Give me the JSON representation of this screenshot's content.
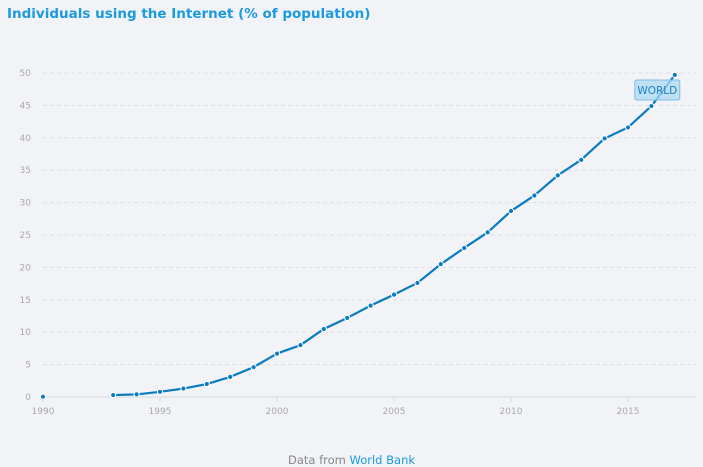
{
  "chart_data": {
    "type": "line",
    "title": "Individuals using the Internet (% of population)",
    "xlabel": "",
    "ylabel": "",
    "xlim": [
      1990,
      2017
    ],
    "ylim": [
      0,
      50
    ],
    "x_ticks": [
      "1990",
      "1995",
      "2000",
      "2005",
      "2010",
      "2015"
    ],
    "y_ticks": [
      "0",
      "5",
      "10",
      "15",
      "20",
      "25",
      "30",
      "35",
      "40",
      "45",
      "50"
    ],
    "grid": true,
    "series": [
      {
        "name": "WORLD",
        "color": "#0a7bc1",
        "x": [
          1990,
          1993,
          1994,
          1995,
          1996,
          1997,
          1998,
          1999,
          2000,
          2001,
          2002,
          2003,
          2004,
          2005,
          2006,
          2007,
          2008,
          2009,
          2010,
          2011,
          2012,
          2013,
          2014,
          2015,
          2016,
          2017
        ],
        "values": [
          0.05,
          0.3,
          0.4,
          0.8,
          1.3,
          2.0,
          3.1,
          4.6,
          6.7,
          8.0,
          10.5,
          12.2,
          14.1,
          15.8,
          17.6,
          20.5,
          23.0,
          25.4,
          28.7,
          31.1,
          34.2,
          36.6,
          39.9,
          41.6,
          44.9,
          49.7
        ]
      }
    ]
  },
  "footer": {
    "prefix": "Data from",
    "source": "World Bank"
  }
}
